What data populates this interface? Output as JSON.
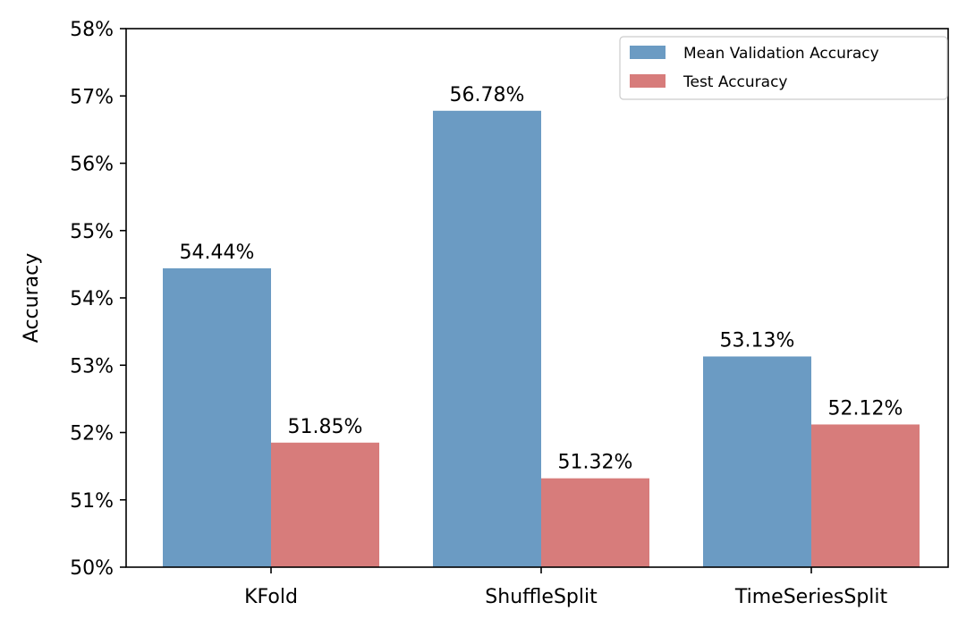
{
  "chart_data": {
    "type": "bar",
    "title": "",
    "xlabel": "",
    "ylabel": "Accuracy",
    "ylim": [
      50,
      58
    ],
    "yticks": [
      "50%",
      "51%",
      "52%",
      "53%",
      "54%",
      "55%",
      "56%",
      "57%",
      "58%"
    ],
    "categories": [
      "KFold",
      "ShuffleSplit",
      "TimeSeriesSplit"
    ],
    "series": [
      {
        "name": "Mean Validation Accuracy",
        "values": [
          54.44,
          56.78,
          53.13
        ],
        "labels": [
          "54.44%",
          "56.78%",
          "53.13%"
        ],
        "color": "#6b9bc3"
      },
      {
        "name": "Test Accuracy",
        "values": [
          51.85,
          51.32,
          52.12
        ],
        "labels": [
          "51.85%",
          "51.32%",
          "52.12%"
        ],
        "color": "#d77c7b"
      }
    ],
    "legend_position": "top-right",
    "grid": false
  }
}
